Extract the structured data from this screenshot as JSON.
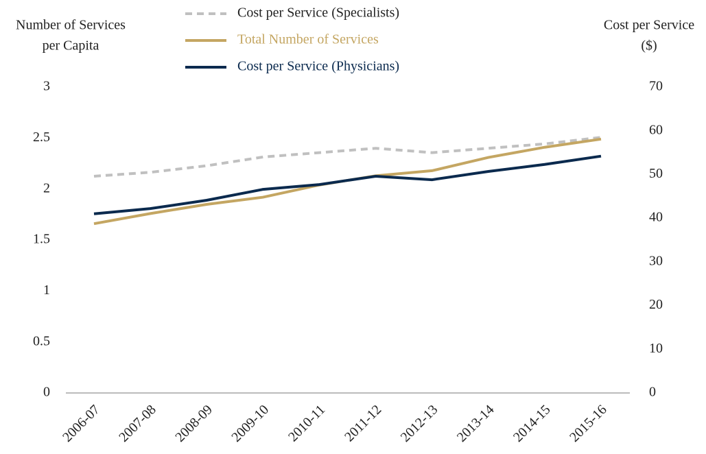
{
  "chart_data": {
    "type": "line",
    "y_label": [
      "Number of Services",
      "per Capita"
    ],
    "y2_label": [
      "Cost per Service",
      "($)"
    ],
    "categories": [
      "2006-07",
      "2007-08",
      "2008-09",
      "2009-10",
      "2010-11",
      "2011-12",
      "2012-13",
      "2013-14",
      "2014-15",
      "2015-16"
    ],
    "series": [
      {
        "name": "Cost per Service (Specialists)",
        "color": "#c0c0c0",
        "dashed": true,
        "axis": "y2",
        "values": [
          49.6,
          50.5,
          52,
          54,
          55,
          56,
          55,
          56,
          57,
          58.5
        ]
      },
      {
        "name": "Total Number of Services",
        "color": "#c4a662",
        "dashed": false,
        "axis": "y",
        "values": [
          1.66,
          1.76,
          1.85,
          1.92,
          2.04,
          2.13,
          2.18,
          2.31,
          2.41,
          2.49
        ]
      },
      {
        "name": "Cost per Service (Physicians)",
        "color": "#0b2a4e",
        "dashed": false,
        "axis": "y2",
        "values": [
          41,
          42.2,
          44.1,
          46.6,
          47.7,
          49.6,
          48.8,
          50.7,
          52.3,
          54.2
        ]
      }
    ],
    "ylim": [
      0,
      3
    ],
    "yticks": [
      0,
      0.5,
      1,
      1.5,
      2,
      2.5,
      3
    ],
    "y2lim": [
      0,
      70
    ],
    "y2ticks": [
      0,
      10,
      20,
      30,
      40,
      50,
      60,
      70
    ]
  }
}
